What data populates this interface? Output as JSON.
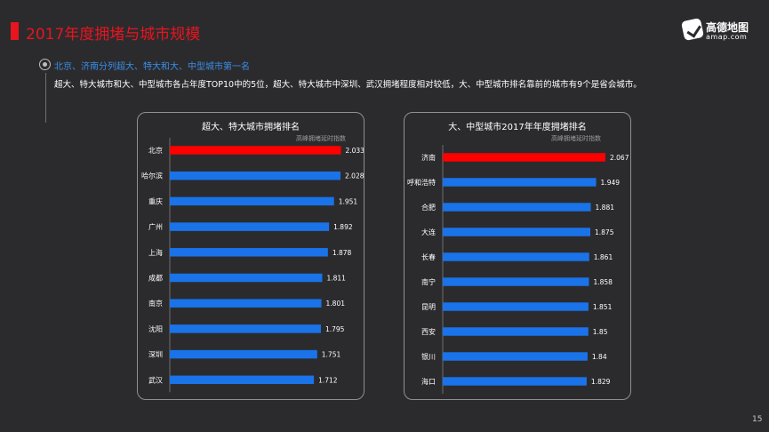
{
  "page": {
    "title": "2017年度拥堵与城市规模",
    "logo_cn": "高德地图",
    "logo_en": "amap.com",
    "headline": "北京、济南分列超大、特大和大、中型城市第一名",
    "description": "超大、特大城市和大、中型城市各占年度TOP10中的5位，超大、特大城市中深圳、武汉拥堵程度相对较低，大、中型城市排名靠前的城市有9个是省会城市。",
    "page_number": "15"
  },
  "colors": {
    "highlight": "#ff0000",
    "bar": "#1a73e8",
    "title": "#e8141e",
    "headline": "#3a8fe8"
  },
  "chart_data": [
    {
      "type": "bar",
      "orientation": "horizontal",
      "title": "超大、特大城市拥堵排名",
      "index_label": "高峰拥堵延时指数",
      "categories": [
        "北京",
        "哈尔滨",
        "重庆",
        "广州",
        "上海",
        "成都",
        "南京",
        "沈阳",
        "深圳",
        "武汉"
      ],
      "values": [
        2.033,
        2.028,
        1.951,
        1.892,
        1.878,
        1.811,
        1.801,
        1.795,
        1.751,
        1.712
      ],
      "value_labels": [
        "2.033",
        "2.028",
        "1.951",
        "1.892",
        "1.878",
        "1.811",
        "1.801",
        "1.795",
        "1.751",
        "1.712"
      ],
      "highlight_index": 0,
      "xlim": [
        0,
        2.07
      ]
    },
    {
      "type": "bar",
      "orientation": "horizontal",
      "title": "大、中型城市2017年年度拥堵排名",
      "index_label": "高峰拥堵延时指数",
      "categories": [
        "济南",
        "呼和浩特",
        "合肥",
        "大连",
        "长春",
        "南宁",
        "昆明",
        "西安",
        "银川",
        "海口"
      ],
      "values": [
        2.067,
        1.949,
        1.881,
        1.875,
        1.861,
        1.858,
        1.851,
        1.85,
        1.84,
        1.829
      ],
      "value_labels": [
        "2.067",
        "1.949",
        "1.881",
        "1.875",
        "1.861",
        "1.858",
        "1.851",
        "1.85",
        "1.84",
        "1.829"
      ],
      "highlight_index": 0,
      "xlim": [
        0,
        2.067
      ]
    }
  ]
}
